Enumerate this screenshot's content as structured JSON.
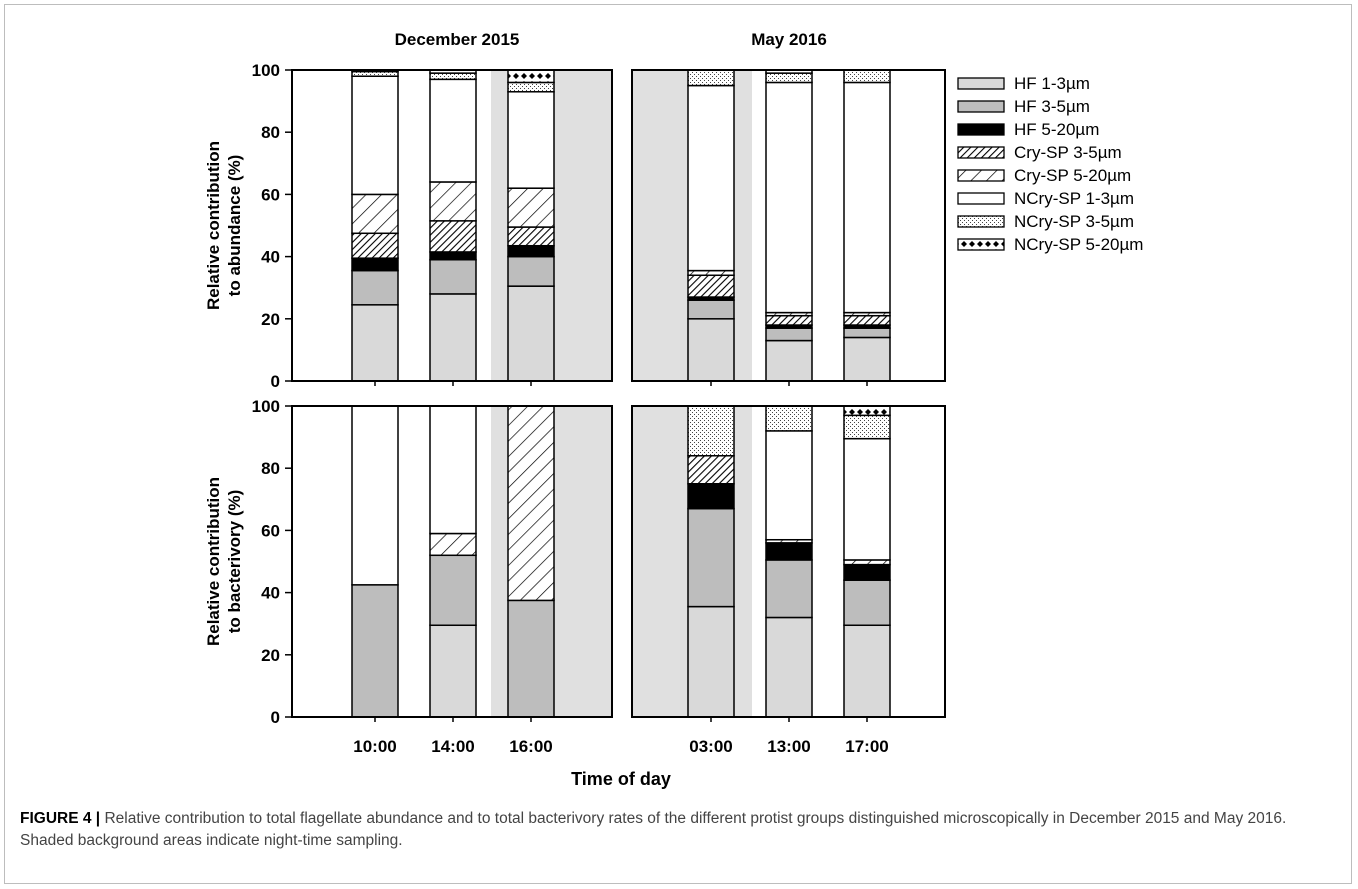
{
  "figure": {
    "caption_label": "FIGURE 4",
    "caption_sep": " | ",
    "caption_text": "Relative contribution to total flagellate abundance and to total bacterivory rates of the different protist groups distinguished microscopically in December 2015 and May 2016. Shaded background areas indicate night-time sampling."
  },
  "chart_data": {
    "type": "bar",
    "stacked": true,
    "xlabel": "Time of day",
    "column_titles": [
      "December 2015",
      "May 2016"
    ],
    "ylim": [
      0,
      100
    ],
    "yticks": [
      0,
      20,
      40,
      60,
      80,
      100
    ],
    "grid": false,
    "night_shading_color": "#e0e0e0",
    "legend_position": "right",
    "legend": [
      {
        "name": "HF 1-3µm",
        "fill": "lightgray"
      },
      {
        "name": "HF 3-5µm",
        "fill": "gray"
      },
      {
        "name": "HF 5-20µm",
        "fill": "black"
      },
      {
        "name": "Cry-SP 3-5µm",
        "fill": "dense-hatch"
      },
      {
        "name": "Cry-SP 5-20µm",
        "fill": "sparse-hatch"
      },
      {
        "name": "NCry-SP 1-3µm",
        "fill": "white"
      },
      {
        "name": "NCry-SP 3-5µm",
        "fill": "stipple"
      },
      {
        "name": "NCry-SP 5-20µm",
        "fill": "diamonds"
      }
    ],
    "panels": [
      {
        "ylabel": [
          "Relative contribution",
          "to abundance (%)"
        ],
        "column": "December 2015",
        "night_shading": "16:00 onward",
        "categories": [
          "10:00",
          "14:00",
          "16:00"
        ],
        "stacks": [
          [
            24.5,
            11,
            4,
            8,
            12.5,
            38,
            1.5,
            0.5
          ],
          [
            28,
            11,
            2.5,
            10,
            12.5,
            33,
            2,
            1
          ],
          [
            30.5,
            9.5,
            3.5,
            6,
            12.5,
            31,
            3,
            4
          ]
        ]
      },
      {
        "ylabel": [
          "Relative contribution",
          "to abundance (%)"
        ],
        "column": "May 2016",
        "night_shading": "03:00",
        "categories": [
          "03:00",
          "13:00",
          "17:00"
        ],
        "stacks": [
          [
            20,
            6,
            1,
            7,
            1.5,
            59.5,
            5,
            0
          ],
          [
            13,
            4,
            1,
            3,
            1,
            74,
            3,
            1
          ],
          [
            14,
            3,
            1,
            3,
            1,
            74,
            4,
            0
          ]
        ]
      },
      {
        "ylabel": [
          "Relative contribution",
          "to bacterivory (%)"
        ],
        "column": "December 2015",
        "night_shading": "16:00 onward",
        "categories": [
          "10:00",
          "14:00",
          "16:00"
        ],
        "stacks": [
          [
            0,
            42.5,
            0,
            0,
            0,
            57.5,
            0,
            0
          ],
          [
            29.5,
            22.5,
            0,
            0,
            7,
            41,
            0,
            0
          ],
          [
            0,
            37.5,
            0,
            0,
            62.5,
            0,
            0,
            0
          ]
        ]
      },
      {
        "ylabel": [
          "Relative contribution",
          "to bacterivory (%)"
        ],
        "column": "May 2016",
        "night_shading": "03:00",
        "categories": [
          "03:00",
          "13:00",
          "17:00"
        ],
        "stacks": [
          [
            35.5,
            31.5,
            8,
            9,
            0,
            0,
            16,
            0
          ],
          [
            32,
            18.5,
            5.5,
            0,
            1,
            35,
            8,
            0
          ],
          [
            29.5,
            14.5,
            5,
            0,
            1.5,
            39,
            7.5,
            3
          ]
        ]
      }
    ]
  }
}
